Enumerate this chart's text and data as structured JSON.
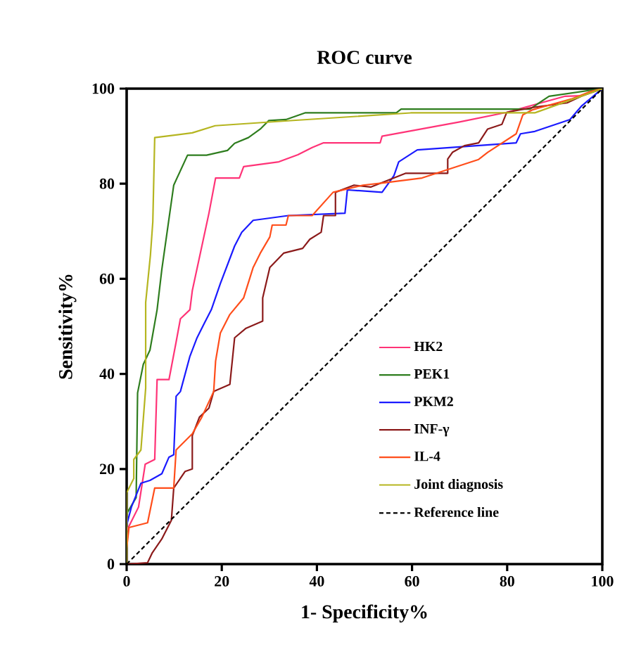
{
  "chart_data": {
    "type": "line",
    "title": "ROC curve",
    "xlabel": "1- Specificity%",
    "ylabel": "Sensitivity%",
    "xlim": [
      0,
      100
    ],
    "ylim": [
      0,
      100
    ],
    "xticks": [
      0,
      20,
      40,
      60,
      80,
      100
    ],
    "yticks": [
      0,
      20,
      40,
      60,
      80,
      100
    ],
    "grid": false,
    "legend": "bottom right",
    "series": [
      {
        "name": "HK2",
        "color": "#ff3377",
        "x": [
          0,
          0,
          2.5,
          3.9,
          5.9,
          6.4,
          8.9,
          10.4,
          11.3,
          13.3,
          13.8,
          17.3,
          18.7,
          23.7,
          24.6,
          32,
          36,
          39,
          41.4,
          53.3,
          53.7,
          70,
          79.9,
          92.2,
          95.6,
          100
        ],
        "values": [
          0,
          7,
          12,
          21,
          22,
          38.8,
          38.8,
          46.7,
          51.6,
          53.5,
          57.5,
          73.8,
          81.2,
          81.2,
          83.6,
          84.6,
          86.1,
          87.6,
          88.6,
          88.6,
          90,
          93,
          95,
          98.4,
          98.5,
          100
        ]
      },
      {
        "name": "PEK1",
        "color": "#2e7d1e",
        "x": [
          0,
          0,
          2,
          2.3,
          3.5,
          4.9,
          6.4,
          7.4,
          9.9,
          12.8,
          16.8,
          21.2,
          22.7,
          25.6,
          28.1,
          29.9,
          33.5,
          37.5,
          56.7,
          57.7,
          84.8,
          88.8,
          100
        ],
        "values": [
          0,
          10.6,
          14,
          36,
          42,
          45,
          53.5,
          62,
          79.7,
          86,
          86,
          87,
          88.5,
          89.7,
          91.5,
          93.3,
          93.5,
          94.9,
          94.9,
          95.7,
          95.7,
          98.4,
          100
        ]
      },
      {
        "name": "PKM2",
        "color": "#1a1aff",
        "x": [
          0,
          0,
          1,
          3,
          4.9,
          7.4,
          8.9,
          9.9,
          10.4,
          11.3,
          13.3,
          14.8,
          16.3,
          17.8,
          19.7,
          22.7,
          24.2,
          26.6,
          34,
          45.9,
          46.4,
          53.7,
          56.2,
          57.2,
          61.1,
          81.9,
          82.8,
          85.8,
          93.2,
          95.7,
          100
        ],
        "values": [
          0,
          8.2,
          12,
          17,
          17.6,
          19,
          22.5,
          23,
          35.3,
          36.3,
          43.7,
          47.6,
          50.6,
          53.5,
          59,
          66.9,
          69.8,
          72.3,
          73.3,
          73.8,
          78.7,
          78.2,
          81.7,
          84.6,
          87.1,
          88.6,
          90.5,
          91,
          93.5,
          96.4,
          100
        ]
      },
      {
        "name": "INF-γ",
        "color": "#8b1a1a",
        "x": [
          0,
          4.4,
          5.4,
          7.4,
          9.4,
          9.9,
          12.3,
          13.8,
          13.8,
          15.3,
          17.3,
          18.3,
          21.7,
          22.7,
          25.1,
          28.6,
          28.6,
          30.1,
          33,
          37,
          38.5,
          40.9,
          41.4,
          43.9,
          43.9,
          47.8,
          51.3,
          58.7,
          67.5,
          67.5,
          68.5,
          71,
          74,
          75.9,
          78.9,
          79.9,
          85.2,
          92.6,
          95.6,
          100
        ],
        "values": [
          0,
          0.3,
          2.4,
          5.3,
          9.2,
          16,
          19.5,
          20,
          27,
          30.9,
          32.8,
          36.3,
          37.8,
          47.6,
          49.6,
          51.1,
          56,
          62.4,
          65.4,
          66.4,
          68.3,
          69.8,
          73.3,
          73.3,
          78.2,
          79.7,
          79.3,
          82.2,
          82.2,
          85.2,
          86.6,
          88,
          88.6,
          91.5,
          92.5,
          95,
          96,
          97,
          98.4,
          100
        ]
      },
      {
        "name": "IL-4",
        "color": "#ff4d1a",
        "x": [
          0,
          0,
          0.5,
          4.4,
          5.9,
          9.9,
          10.4,
          11.8,
          13.8,
          15.8,
          18.3,
          18.7,
          19.7,
          21.7,
          24.6,
          26.6,
          28.1,
          30.1,
          30.6,
          33.5,
          34,
          39,
          43.4,
          49.7,
          54.2,
          62.1,
          74,
          75.9,
          81.9,
          83.3,
          85.2,
          93.7,
          97.6,
          100
        ],
        "values": [
          0,
          3.3,
          7.7,
          8.7,
          16,
          16,
          24,
          25.4,
          27.4,
          30.9,
          36.3,
          42.7,
          48.6,
          52.5,
          56,
          62.4,
          65.4,
          68.8,
          71.3,
          71.3,
          73.3,
          73.3,
          78.2,
          79.7,
          80.2,
          81.2,
          85.1,
          86.6,
          90.5,
          94.5,
          95.5,
          97.9,
          99.4,
          100
        ]
      },
      {
        "name": "Joint diagnosis",
        "color": "#b5b520",
        "x": [
          0,
          0,
          1.5,
          1.5,
          3,
          4,
          4,
          5,
          5.5,
          5.9,
          13.8,
          18.6,
          35,
          59.7,
          85.8,
          100
        ],
        "values": [
          0,
          15,
          18,
          22,
          24,
          37,
          55,
          65,
          72,
          89.7,
          90.7,
          92.2,
          93.3,
          94.9,
          94.9,
          100
        ]
      },
      {
        "name": "Reference line",
        "color": "#000000",
        "line_style": "dashed",
        "x": [
          0,
          100
        ],
        "values": [
          0,
          100
        ]
      }
    ]
  }
}
